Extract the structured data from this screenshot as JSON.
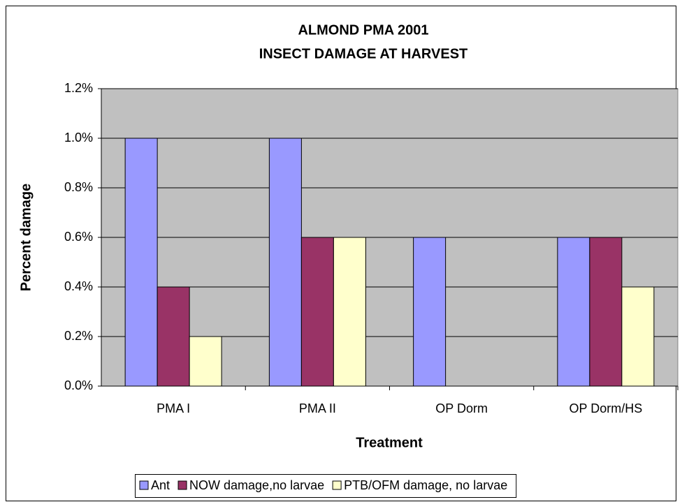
{
  "chart_data": {
    "type": "bar",
    "title": "ALMOND PMA 2001",
    "subtitle": "INSECT DAMAGE AT HARVEST",
    "x_label": "Treatment",
    "y_label": "Percent damage",
    "categories": [
      "PMA I",
      "PMA II",
      "OP Dorm",
      "OP Dorm/HS"
    ],
    "series": [
      {
        "name": "Ant",
        "color": "#9999ff",
        "values": [
          1.0,
          1.0,
          0.6,
          0.6
        ]
      },
      {
        "name": "NOW damage,no larvae",
        "color": "#993366",
        "values": [
          0.4,
          0.6,
          0,
          0.6
        ]
      },
      {
        "name": "PTB/OFM damage, no larvae",
        "color": "#ffffcc",
        "values": [
          0.2,
          0.6,
          0,
          0.4
        ]
      }
    ],
    "ylim": [
      0,
      1.2
    ],
    "yticks": [
      {
        "value": 0,
        "label": "0.0%"
      },
      {
        "value": 0.2,
        "label": "0.2%"
      },
      {
        "value": 0.4,
        "label": "0.4%"
      },
      {
        "value": 0.6,
        "label": "0.6%"
      },
      {
        "value": 0.8,
        "label": "0.8%"
      },
      {
        "value": 1.0,
        "label": "1.0%"
      },
      {
        "value": 1.2,
        "label": "1.2%"
      }
    ],
    "grid": true,
    "plot_background": "#c0c0c0",
    "legend": "bottom"
  }
}
